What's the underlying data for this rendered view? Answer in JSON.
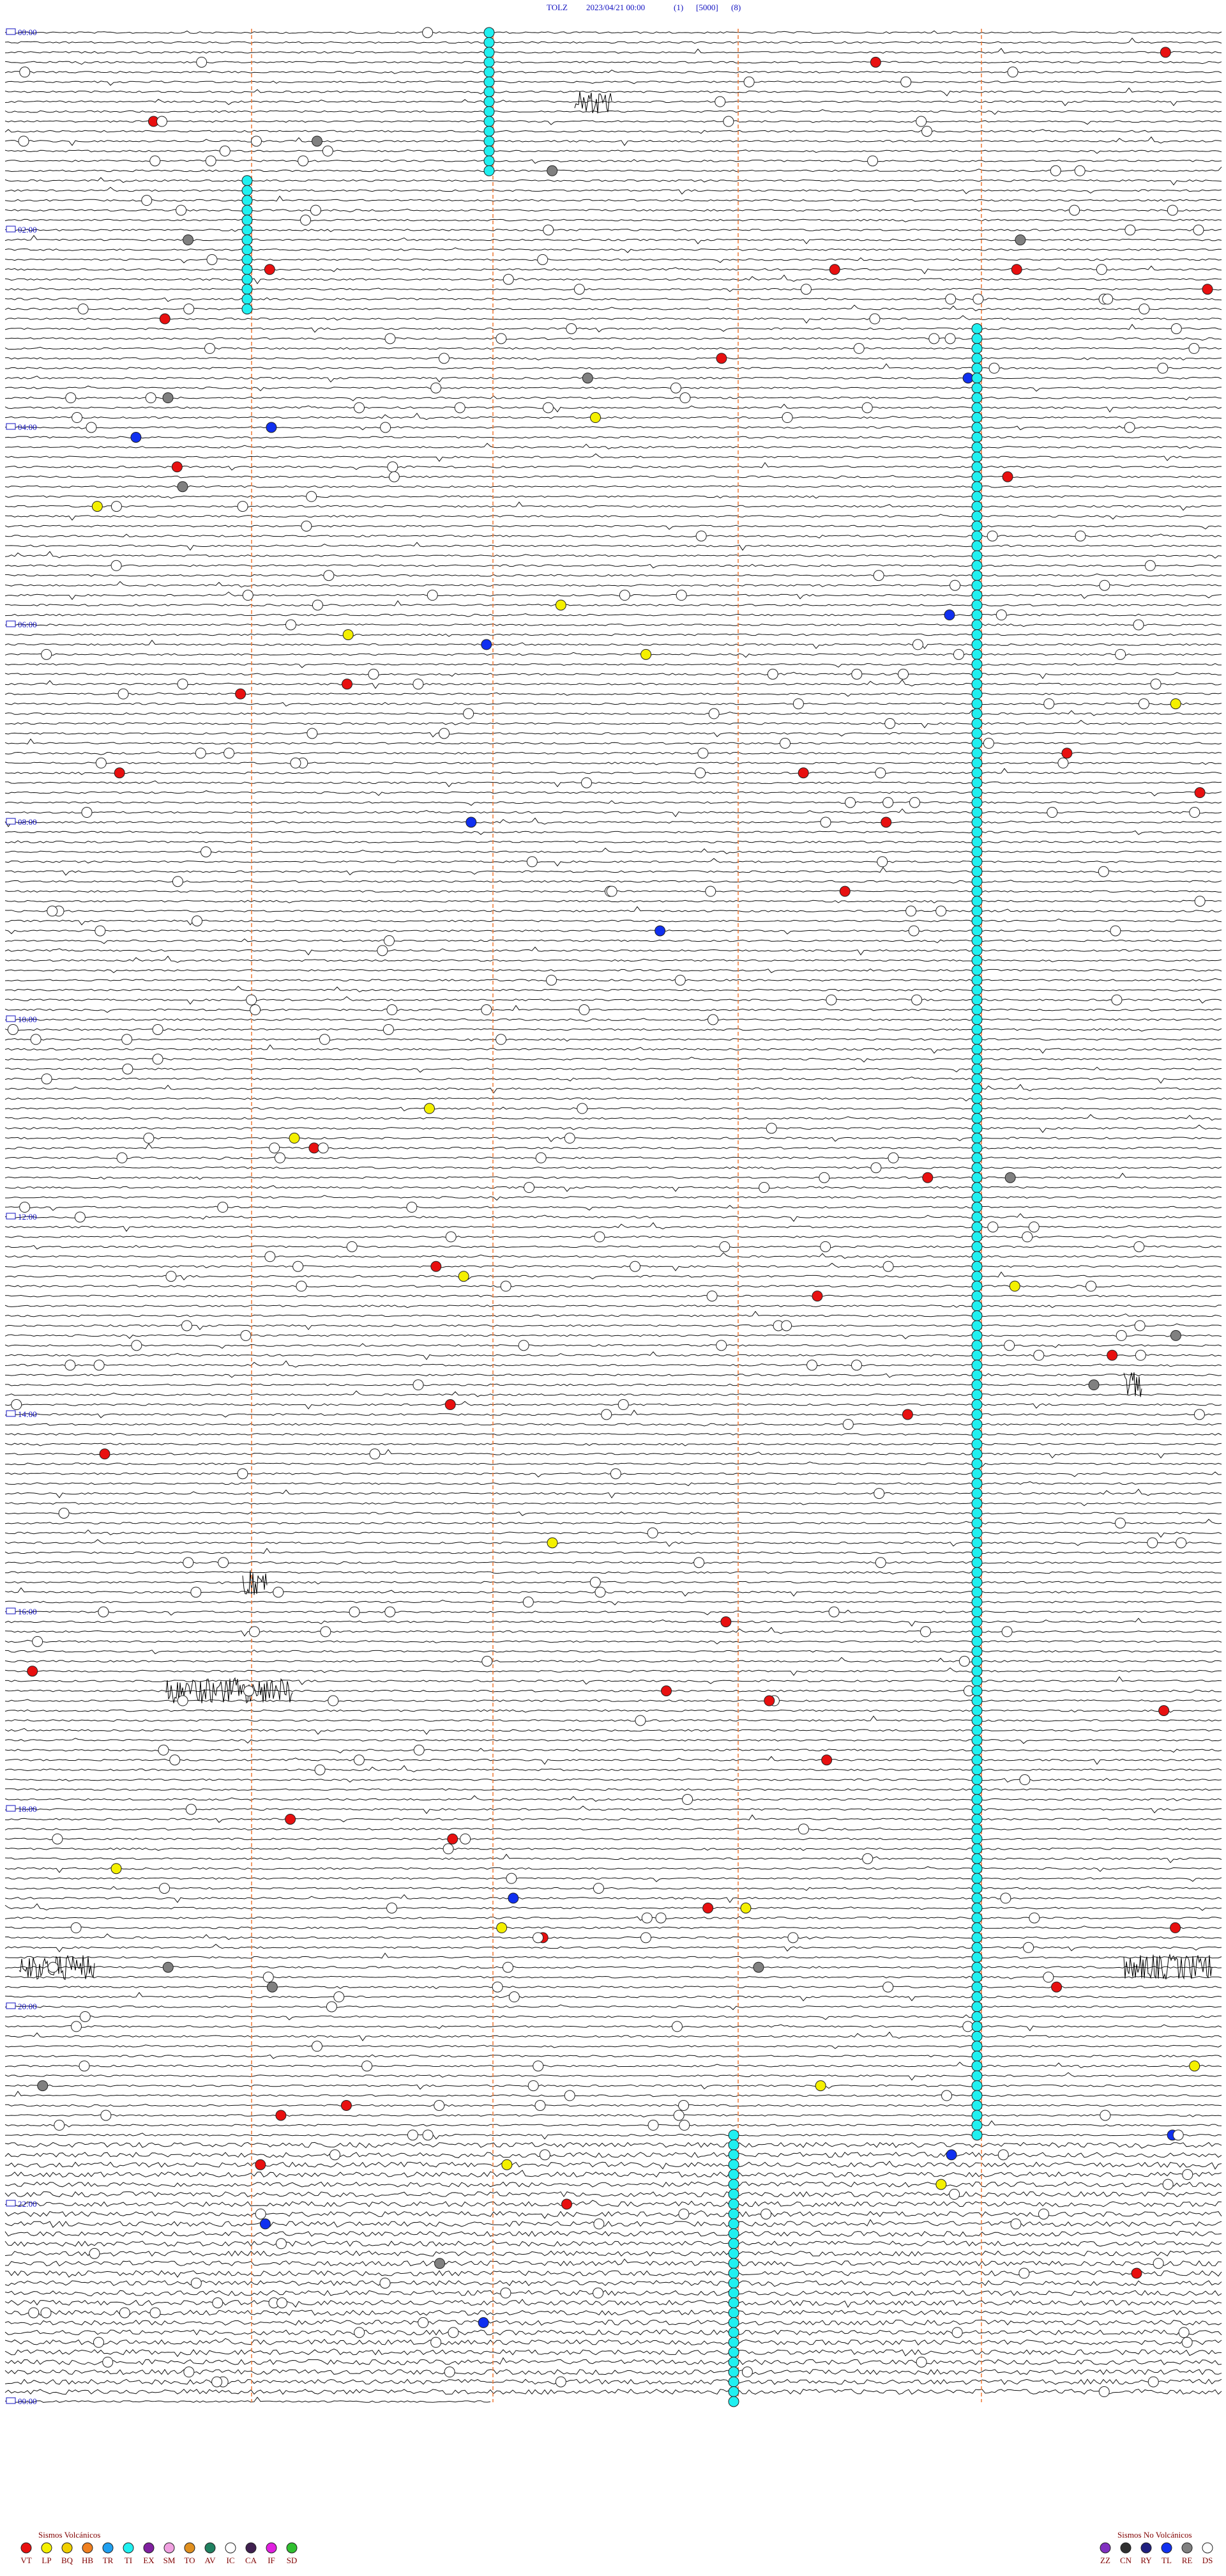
{
  "header": {
    "station": "TOLZ",
    "datetime": "2023/04/21 00:00",
    "flag1": "(1)",
    "scale": "[5000]",
    "flag2": "(8)"
  },
  "time_labels": [
    "00:00",
    "02:00",
    "04:00",
    "06:00",
    "08:00",
    "10:00",
    "12:00",
    "14:00",
    "16:00",
    "18:00",
    "20:00",
    "22:00",
    "00:00"
  ],
  "legend_volcanic": {
    "title": "Sismos Volcánicos",
    "items": [
      {
        "code": "VT",
        "color": "#e81010"
      },
      {
        "code": "LP",
        "color": "#f4f000"
      },
      {
        "code": "BQ",
        "color": "#f0d000"
      },
      {
        "code": "HB",
        "color": "#f08020"
      },
      {
        "code": "TR",
        "color": "#20a0f0"
      },
      {
        "code": "TI",
        "color": "#20f0f0"
      },
      {
        "code": "EX",
        "color": "#8020a0"
      },
      {
        "code": "SM",
        "color": "#f0a0e0"
      },
      {
        "code": "TO",
        "color": "#e09020"
      },
      {
        "code": "AV",
        "color": "#208060"
      },
      {
        "code": "IC",
        "color": "#ffffff"
      },
      {
        "code": "CA",
        "color": "#402050"
      },
      {
        "code": "IF",
        "color": "#e020e0"
      },
      {
        "code": "SD",
        "color": "#30c030"
      }
    ]
  },
  "legend_non_volcanic": {
    "title": "Sismos No Volcánicos",
    "items": [
      {
        "code": "ZZ",
        "color": "#8030c0"
      },
      {
        "code": "CN",
        "color": "#303030"
      },
      {
        "code": "RY",
        "color": "#202080"
      },
      {
        "code": "TL",
        "color": "#1030f0"
      },
      {
        "code": "RE",
        "color": "#808080"
      },
      {
        "code": "DS",
        "color": "#ffffff"
      }
    ]
  }
}
